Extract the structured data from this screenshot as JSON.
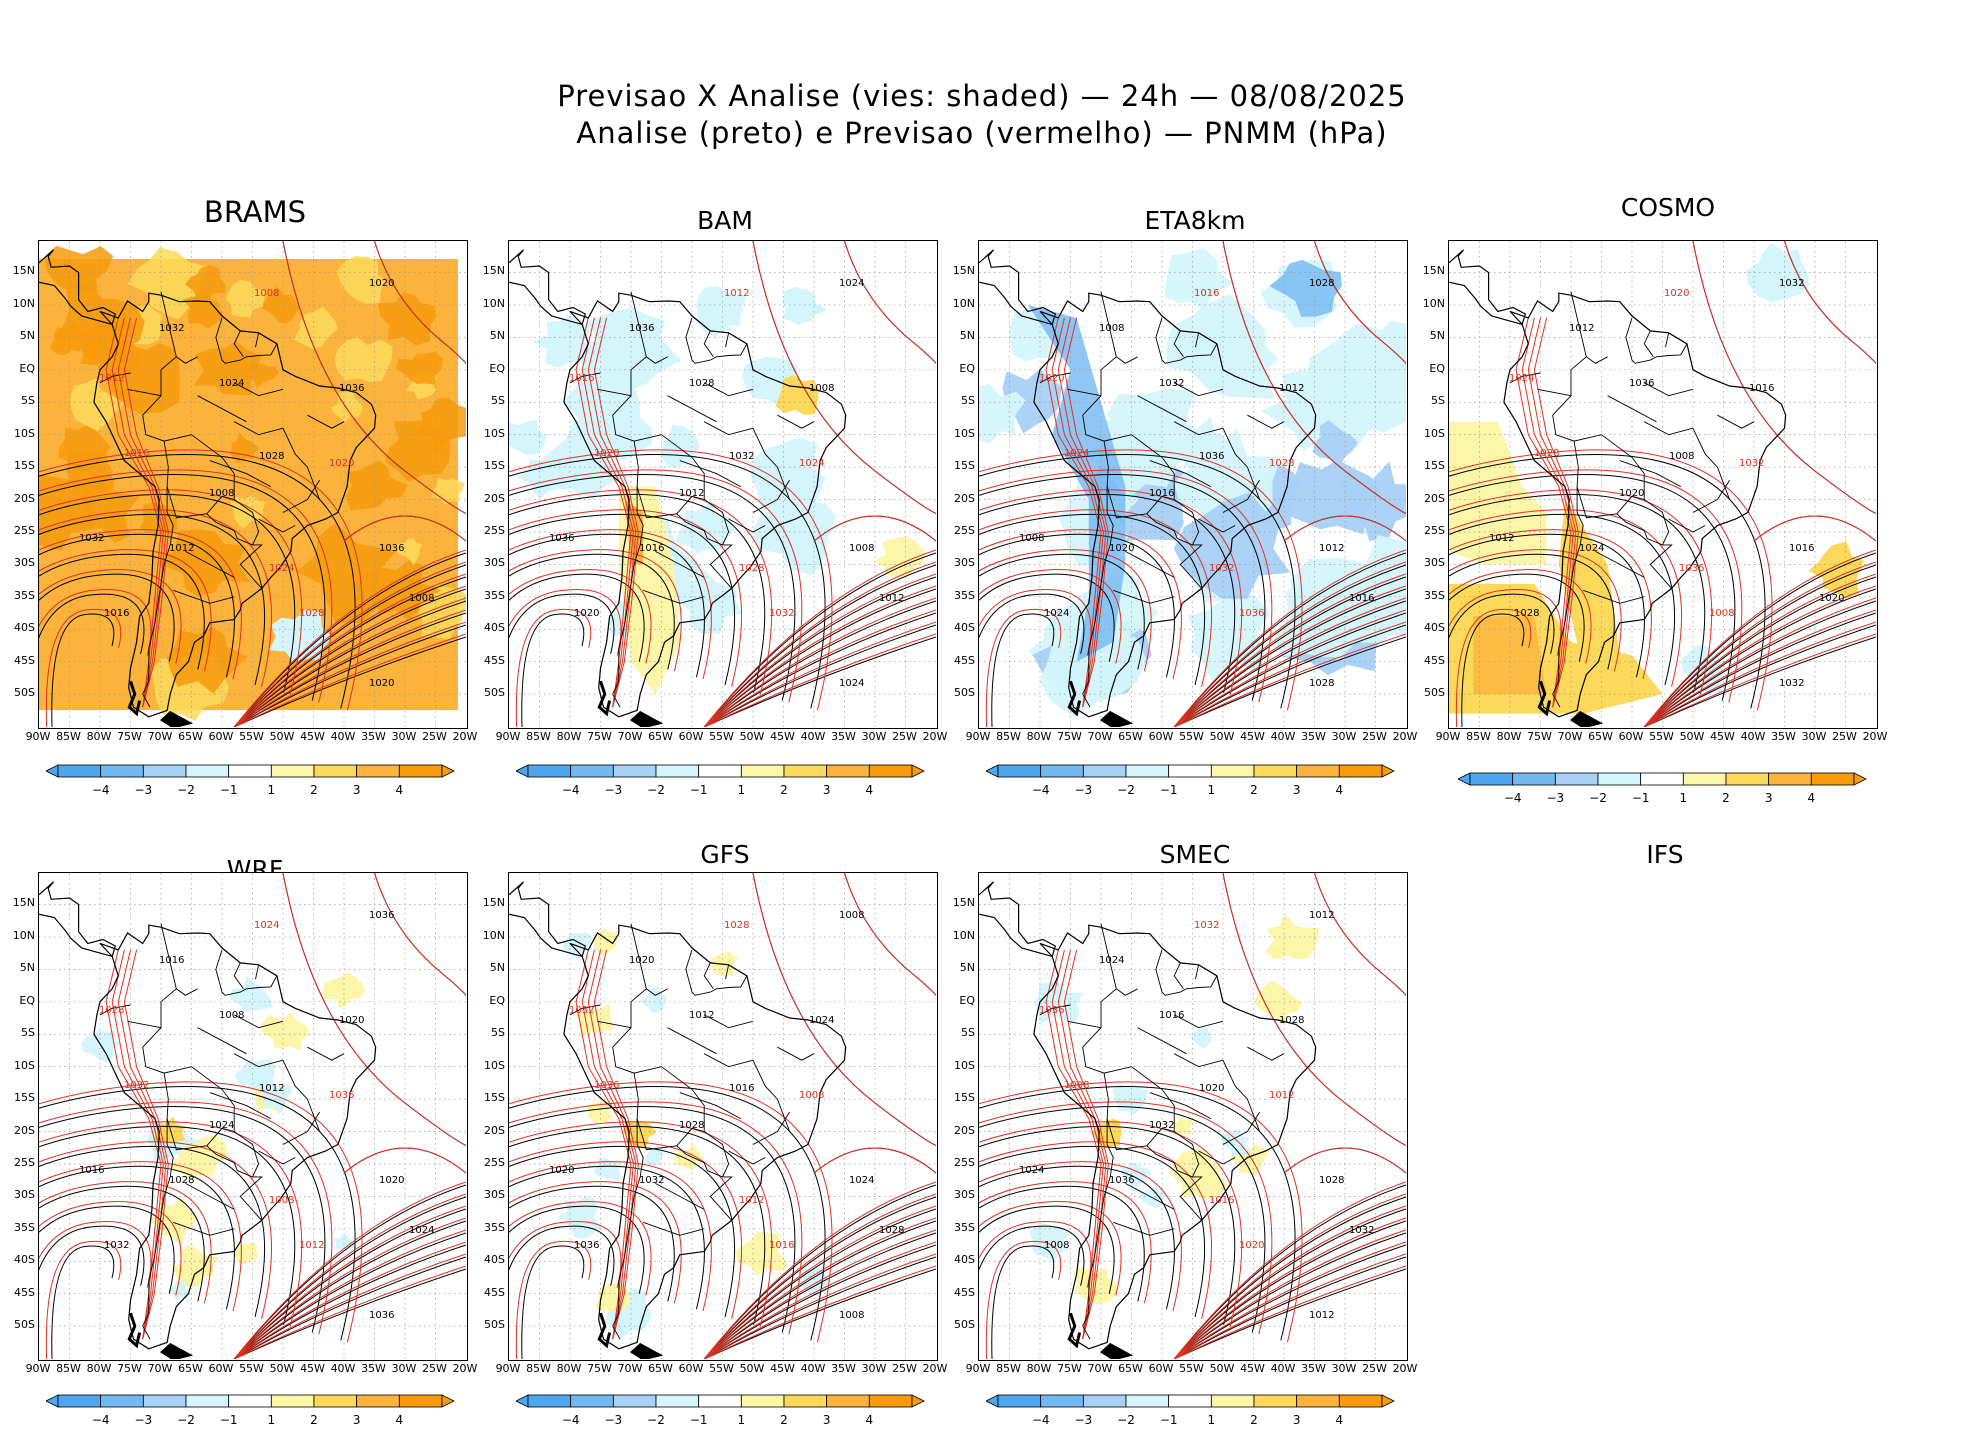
{
  "title": {
    "line1": "Previsao X Analise (vies: shaded) — 24h — 08/08/2025",
    "line2": "Analise (preto) e Previsao (vermelho) — PNMM (hPa)"
  },
  "panels": [
    {
      "name": "BRAMS",
      "bias": "strong-positive"
    },
    {
      "name": "BAM",
      "bias": "mixed"
    },
    {
      "name": "ETA8km",
      "bias": "negative"
    },
    {
      "name": "COSMO",
      "bias": "mixed-positive"
    },
    {
      "name": "WRF",
      "bias": "weak"
    },
    {
      "name": "GFS",
      "bias": "weak"
    },
    {
      "name": "SMEC",
      "bias": "weak"
    },
    {
      "name": "IFS",
      "bias": "empty"
    }
  ],
  "chart_data": {
    "type": "heatmap",
    "variable": "PNMM (hPa)",
    "lat_labels": [
      "15N",
      "10N",
      "5N",
      "EQ",
      "5S",
      "10S",
      "15S",
      "20S",
      "25S",
      "30S",
      "35S",
      "40S",
      "45S",
      "50S"
    ],
    "lon_labels": [
      "90W",
      "85W",
      "80W",
      "75W",
      "70W",
      "65W",
      "60W",
      "55W",
      "50W",
      "45W",
      "40W",
      "35W",
      "30W",
      "25W",
      "20W"
    ],
    "colorbar_labels": [
      "−4",
      "−3",
      "−2",
      "−1",
      "1",
      "2",
      "3",
      "4"
    ],
    "colorbar_colors": [
      "#4da6ee",
      "#74b8f2",
      "#a8d1f7",
      "#d4f5fb",
      "#ffffff",
      "#fdf5a8",
      "#fcd95a",
      "#fbb33c",
      "#f79a0c"
    ],
    "contour_labels": [
      "1008",
      "1012",
      "1016",
      "1020",
      "1024",
      "1028",
      "1032",
      "1036"
    ],
    "colors": {
      "analysis": "#000000",
      "forecast": "#e03020"
    }
  }
}
